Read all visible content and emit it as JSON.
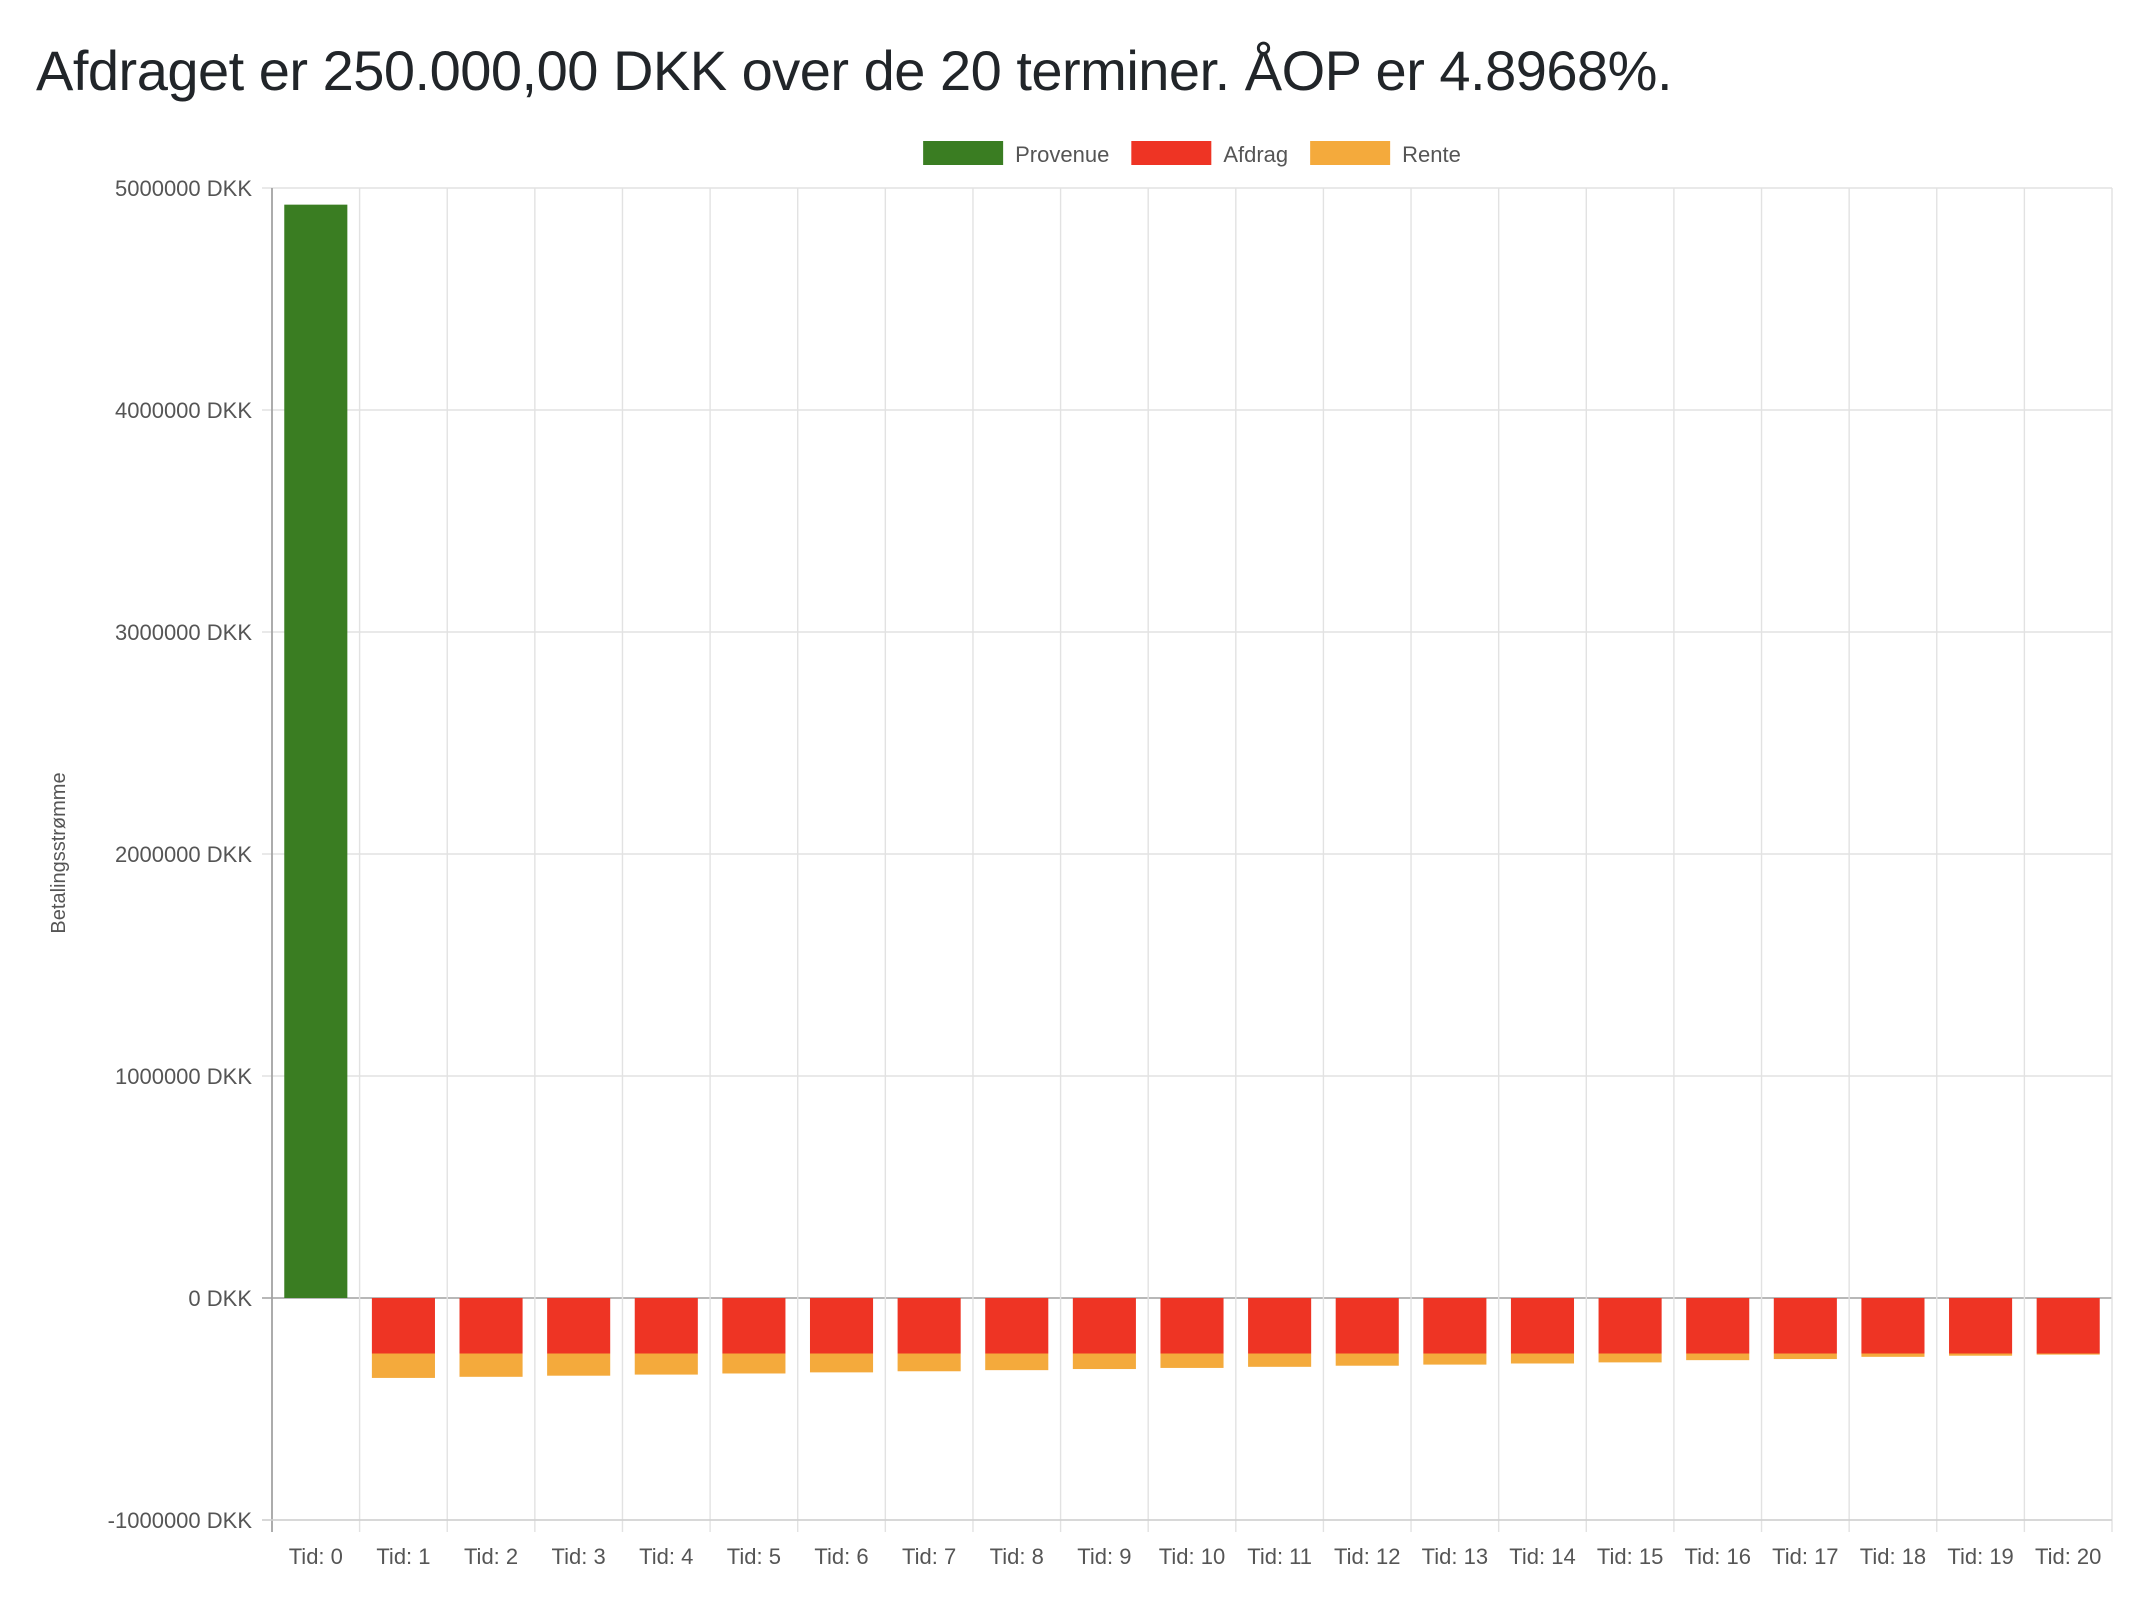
{
  "title": "Afdraget er 250.000,00 DKK over de 20 terminer. ÅOP er 4.8968%.",
  "chart_data": {
    "type": "bar",
    "stacked": true,
    "ylabel": "Betalingsstrømme",
    "xlabel": "",
    "ylim": [
      -1000000,
      5000000
    ],
    "y_ticks": [
      5000000,
      4000000,
      3000000,
      2000000,
      1000000,
      0,
      -1000000
    ],
    "y_tick_format": "{v} DKK",
    "grid": true,
    "legend_position": "top-center",
    "categories": [
      "Tid: 0",
      "Tid: 1",
      "Tid: 2",
      "Tid: 3",
      "Tid: 4",
      "Tid: 5",
      "Tid: 6",
      "Tid: 7",
      "Tid: 8",
      "Tid: 9",
      "Tid: 10",
      "Tid: 11",
      "Tid: 12",
      "Tid: 13",
      "Tid: 14",
      "Tid: 15",
      "Tid: 16",
      "Tid: 17",
      "Tid: 18",
      "Tid: 19",
      "Tid: 20"
    ],
    "series": [
      {
        "name": "Provenue",
        "color": "#3a7d22",
        "values": [
          4925000,
          0,
          0,
          0,
          0,
          0,
          0,
          0,
          0,
          0,
          0,
          0,
          0,
          0,
          0,
          0,
          0,
          0,
          0,
          0,
          0
        ]
      },
      {
        "name": "Afdrag",
        "color": "#ee3424",
        "values": [
          0,
          -250000,
          -250000,
          -250000,
          -250000,
          -250000,
          -250000,
          -250000,
          -250000,
          -250000,
          -250000,
          -250000,
          -250000,
          -250000,
          -250000,
          -250000,
          -250000,
          -250000,
          -250000,
          -250000,
          -250000
        ]
      },
      {
        "name": "Rente",
        "color": "#f4aa3c",
        "values": [
          0,
          -110000,
          -105000,
          -100000,
          -95000,
          -90000,
          -85000,
          -80000,
          -75000,
          -70000,
          -65000,
          -60000,
          -55000,
          -50000,
          -45000,
          -40000,
          -30000,
          -25000,
          -15000,
          -10000,
          -5000
        ]
      }
    ]
  }
}
